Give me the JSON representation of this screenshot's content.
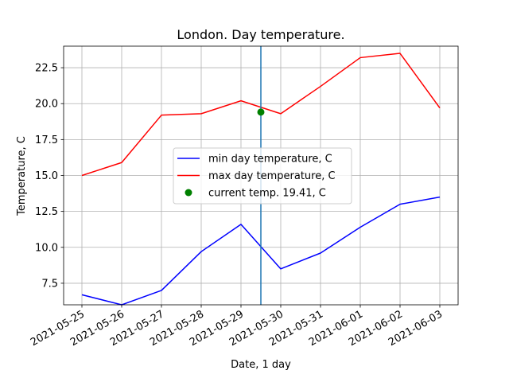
{
  "chart_data": {
    "type": "line",
    "title": "London. Day temperature.",
    "xlabel": "Date, 1 day",
    "ylabel": "Temperature, C",
    "x": [
      "2021-05-25",
      "2021-05-26",
      "2021-05-27",
      "2021-05-28",
      "2021-05-29",
      "2021-05-30",
      "2021-05-31",
      "2021-06-01",
      "2021-06-02",
      "2021-06-03"
    ],
    "ylim": [
      6.0,
      24.0
    ],
    "yticks": [
      7.5,
      10.0,
      12.5,
      15.0,
      17.5,
      20.0,
      22.5
    ],
    "ytick_labels": [
      "7.5",
      "10.0",
      "12.5",
      "15.0",
      "17.5",
      "20.0",
      "22.5"
    ],
    "grid": true,
    "legend_position": "center",
    "series": [
      {
        "name": "min day temperature, C",
        "color": "#0000ff",
        "values": [
          6.7,
          6.0,
          7.0,
          9.7,
          11.6,
          8.5,
          9.6,
          11.4,
          13.0,
          13.5
        ]
      },
      {
        "name": "max day temperature, C",
        "color": "#ff0000",
        "values": [
          15.0,
          15.9,
          19.2,
          19.3,
          20.2,
          19.3,
          21.2,
          23.2,
          23.5,
          19.7
        ]
      }
    ],
    "current_point": {
      "name": "current temp. 19.41, C",
      "color": "#008000",
      "x": "2021-05-29 12:00",
      "y": 19.41
    },
    "vertical_line": {
      "color": "#1f77b4",
      "x": "2021-05-29 12:00"
    }
  }
}
